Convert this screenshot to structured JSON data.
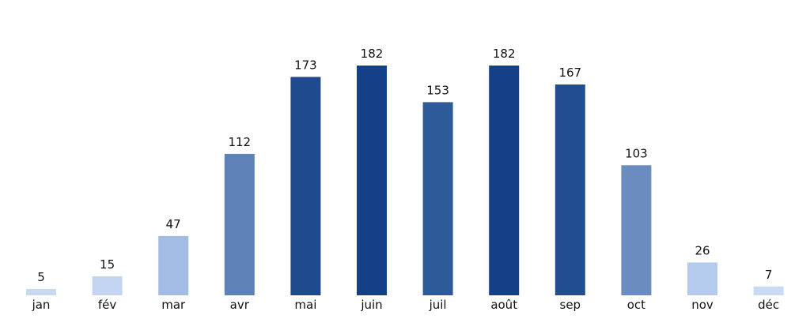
{
  "chart_data": {
    "type": "bar",
    "categories": [
      "jan",
      "fév",
      "mar",
      "avr",
      "mai",
      "juin",
      "juil",
      "août",
      "sep",
      "oct",
      "nov",
      "déc"
    ],
    "values": [
      5,
      15,
      47,
      112,
      173,
      182,
      153,
      182,
      167,
      103,
      26,
      7
    ],
    "ylim": [
      0,
      182
    ],
    "grid": false,
    "axes_visible": false,
    "bar_colors": [
      "#c7d8f3",
      "#c3d5f1",
      "#a2bce3",
      "#5e81b7",
      "#1e4b8d",
      "#144088",
      "#2d5b99",
      "#144088",
      "#224d90",
      "#6a8cbf",
      "#b5cbed",
      "#c9daf3"
    ]
  }
}
